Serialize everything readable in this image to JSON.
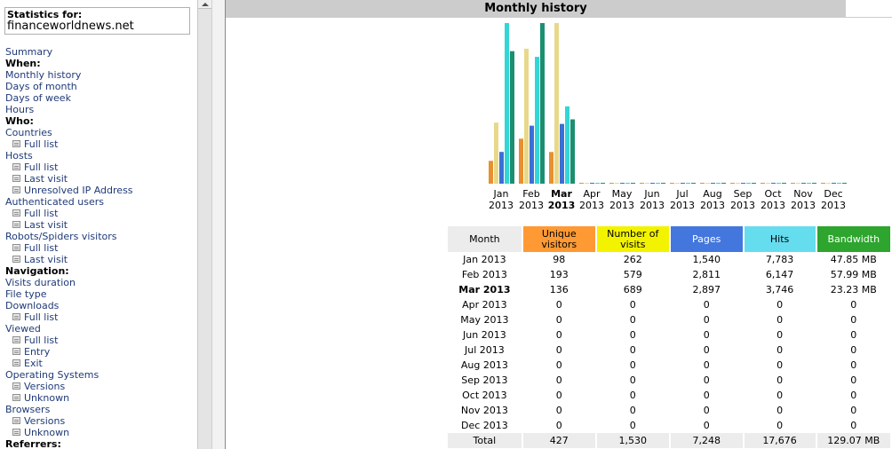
{
  "nav": {
    "stat_label": "Statistics for:",
    "site": "financeworldnews.net",
    "items": [
      {
        "text": "Summary",
        "type": "link"
      },
      {
        "text": "When:",
        "type": "head"
      },
      {
        "text": "Monthly history",
        "type": "link"
      },
      {
        "text": "Days of month",
        "type": "link"
      },
      {
        "text": "Days of week",
        "type": "link"
      },
      {
        "text": "Hours",
        "type": "link"
      },
      {
        "text": "Who:",
        "type": "head"
      },
      {
        "text": "Countries",
        "type": "link"
      },
      {
        "text": "Full list",
        "type": "sub"
      },
      {
        "text": "Hosts",
        "type": "link"
      },
      {
        "text": "Full list",
        "type": "sub"
      },
      {
        "text": "Last visit",
        "type": "sub"
      },
      {
        "text": "Unresolved IP Address",
        "type": "sub"
      },
      {
        "text": "Authenticated users",
        "type": "link"
      },
      {
        "text": "Full list",
        "type": "sub"
      },
      {
        "text": "Last visit",
        "type": "sub"
      },
      {
        "text": "Robots/Spiders visitors",
        "type": "link"
      },
      {
        "text": "Full list",
        "type": "sub"
      },
      {
        "text": "Last visit",
        "type": "sub"
      },
      {
        "text": "Navigation:",
        "type": "head"
      },
      {
        "text": "Visits duration",
        "type": "link"
      },
      {
        "text": "File type",
        "type": "link"
      },
      {
        "text": "Downloads",
        "type": "link"
      },
      {
        "text": "Full list",
        "type": "sub"
      },
      {
        "text": "Viewed",
        "type": "link"
      },
      {
        "text": "Full list",
        "type": "sub"
      },
      {
        "text": "Entry",
        "type": "sub"
      },
      {
        "text": "Exit",
        "type": "sub"
      },
      {
        "text": "Operating Systems",
        "type": "link"
      },
      {
        "text": "Versions",
        "type": "sub"
      },
      {
        "text": "Unknown",
        "type": "sub"
      },
      {
        "text": "Browsers",
        "type": "link"
      },
      {
        "text": "Versions",
        "type": "sub"
      },
      {
        "text": "Unknown",
        "type": "sub"
      },
      {
        "text": "Referrers:",
        "type": "head"
      }
    ],
    "sub_icon": "page-icon"
  },
  "main": {
    "title": "Monthly history",
    "columns": {
      "month": "Month",
      "unique_visitors_1": "Unique",
      "unique_visitors_2": "visitors",
      "visits_1": "Number of",
      "visits_2": "visits",
      "pages": "Pages",
      "hits": "Hits",
      "bandwidth": "Bandwidth"
    },
    "rows": [
      {
        "month": "Jan 2013",
        "uv": "98",
        "visits": "262",
        "pages": "1,540",
        "hits": "7,783",
        "bw": "47.85 MB"
      },
      {
        "month": "Feb 2013",
        "uv": "193",
        "visits": "579",
        "pages": "2,811",
        "hits": "6,147",
        "bw": "57.99 MB"
      },
      {
        "month": "Mar 2013",
        "uv": "136",
        "visits": "689",
        "pages": "2,897",
        "hits": "3,746",
        "bw": "23.23 MB",
        "current": true
      },
      {
        "month": "Apr 2013",
        "uv": "0",
        "visits": "0",
        "pages": "0",
        "hits": "0",
        "bw": "0"
      },
      {
        "month": "May 2013",
        "uv": "0",
        "visits": "0",
        "pages": "0",
        "hits": "0",
        "bw": "0"
      },
      {
        "month": "Jun 2013",
        "uv": "0",
        "visits": "0",
        "pages": "0",
        "hits": "0",
        "bw": "0"
      },
      {
        "month": "Jul 2013",
        "uv": "0",
        "visits": "0",
        "pages": "0",
        "hits": "0",
        "bw": "0"
      },
      {
        "month": "Aug 2013",
        "uv": "0",
        "visits": "0",
        "pages": "0",
        "hits": "0",
        "bw": "0"
      },
      {
        "month": "Sep 2013",
        "uv": "0",
        "visits": "0",
        "pages": "0",
        "hits": "0",
        "bw": "0"
      },
      {
        "month": "Oct 2013",
        "uv": "0",
        "visits": "0",
        "pages": "0",
        "hits": "0",
        "bw": "0"
      },
      {
        "month": "Nov 2013",
        "uv": "0",
        "visits": "0",
        "pages": "0",
        "hits": "0",
        "bw": "0"
      },
      {
        "month": "Dec 2013",
        "uv": "0",
        "visits": "0",
        "pages": "0",
        "hits": "0",
        "bw": "0"
      }
    ],
    "total": {
      "month": "Total",
      "uv": "427",
      "visits": "1,530",
      "pages": "7,248",
      "hits": "17,676",
      "bw": "129.07 MB"
    }
  },
  "colors": {
    "unique_visitors": "#ff9933",
    "visits": "#f3f300",
    "pages": "#4477dd",
    "hits": "#66ddee",
    "bandwidth": "#2ea52e",
    "header_grey": "#cccccc"
  },
  "chart_data": {
    "type": "bar",
    "categories": [
      [
        "Jan",
        "2013"
      ],
      [
        "Feb",
        "2013"
      ],
      [
        "Mar",
        "2013"
      ],
      [
        "Apr",
        "2013"
      ],
      [
        "May",
        "2013"
      ],
      [
        "Jun",
        "2013"
      ],
      [
        "Jul",
        "2013"
      ],
      [
        "Aug",
        "2013"
      ],
      [
        "Sep",
        "2013"
      ],
      [
        "Oct",
        "2013"
      ],
      [
        "Nov",
        "2013"
      ],
      [
        "Dec",
        "2013"
      ]
    ],
    "current_index": 2,
    "series": [
      {
        "key": "uv",
        "color": "#e89030",
        "values": [
          98,
          193,
          136,
          0,
          0,
          0,
          0,
          0,
          0,
          0,
          0,
          0
        ],
        "scale_group": "visits"
      },
      {
        "key": "visits",
        "color": "#e8d88a",
        "values": [
          262,
          579,
          689,
          0,
          0,
          0,
          0,
          0,
          0,
          0,
          0,
          0
        ],
        "scale_group": "visits"
      },
      {
        "key": "pages",
        "color": "#3b6fd8",
        "values": [
          1540,
          2811,
          2897,
          0,
          0,
          0,
          0,
          0,
          0,
          0,
          0,
          0
        ],
        "scale_group": "hits"
      },
      {
        "key": "hits",
        "color": "#33d6d6",
        "values": [
          7783,
          6147,
          3746,
          0,
          0,
          0,
          0,
          0,
          0,
          0,
          0,
          0
        ],
        "scale_group": "hits"
      },
      {
        "key": "bandwidth_mb",
        "color": "#1a9070",
        "values": [
          47.85,
          57.99,
          23.23,
          0,
          0,
          0,
          0,
          0,
          0,
          0,
          0,
          0
        ],
        "scale_group": "bandwidth"
      }
    ]
  }
}
